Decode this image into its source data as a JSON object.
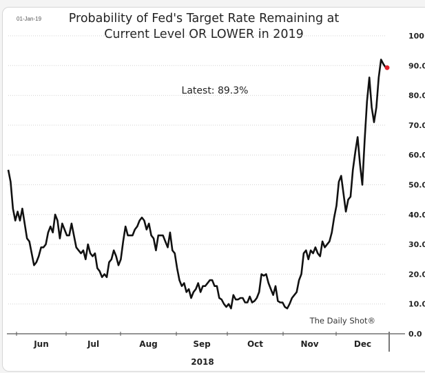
{
  "header": {
    "date": "01-Jan-19"
  },
  "annotations": {
    "latest": "Latest:  89.3%",
    "source": "The Daily Shot®"
  },
  "chart_data": {
    "type": "line",
    "title": "Probability of Fed's Target Rate Remaining at Current Level OR LOWER in 2019",
    "title_lines": [
      "Probability of Fed's Target Rate Remaining at",
      "Current Level OR LOWER in 2019"
    ],
    "xlabel": "2018",
    "ylabel": "",
    "ylim": [
      0,
      100
    ],
    "y_ticks": [
      "0.0",
      "10.0",
      "20.0",
      "30.0",
      "40.0",
      "50.0",
      "60.0",
      "70.0",
      "80.0",
      "90.0",
      "100.0"
    ],
    "x_tick_labels": [
      "Jun",
      "Jul",
      "Aug",
      "Sep",
      "Oct",
      "Nov",
      "Dec"
    ],
    "grid": true,
    "axis_side": "right",
    "latest_marker": {
      "value": 89.3,
      "color": "#e0202a"
    },
    "series": [
      {
        "name": "Probability",
        "color": "#111111",
        "x_range_days": [
          0,
          215
        ],
        "values": [
          55.0,
          51.0,
          42.0,
          38.0,
          41.0,
          38.0,
          42.0,
          37.0,
          32.0,
          31.0,
          27.0,
          23.0,
          24.0,
          26.0,
          29.0,
          29.0,
          30.0,
          34.0,
          36.0,
          34.0,
          40.0,
          38.0,
          32.0,
          37.0,
          35.0,
          33.0,
          33.0,
          37.0,
          33.0,
          29.0,
          28.0,
          27.0,
          28.0,
          25.0,
          30.0,
          27.0,
          26.0,
          27.0,
          22.0,
          21.0,
          19.0,
          20.0,
          19.0,
          24.0,
          25.0,
          28.0,
          26.0,
          23.0,
          25.0,
          31.0,
          36.0,
          33.0,
          33.0,
          33.0,
          35.0,
          36.0,
          38.0,
          39.0,
          38.0,
          35.0,
          37.0,
          33.0,
          32.0,
          28.0,
          33.0,
          33.0,
          33.0,
          31.0,
          29.0,
          34.0,
          28.0,
          27.0,
          22.0,
          18.0,
          16.0,
          17.0,
          14.0,
          15.0,
          12.0,
          14.0,
          15.0,
          17.0,
          14.0,
          16.0,
          16.0,
          17.0,
          18.0,
          18.0,
          16.0,
          16.0,
          12.0,
          11.5,
          10.0,
          9.0,
          10.0,
          8.5,
          13.0,
          11.5,
          11.5,
          12.0,
          12.0,
          10.5,
          10.5,
          12.5,
          10.5,
          11.0,
          12.0,
          14.0,
          20.0,
          19.5,
          20.0,
          17.0,
          15.0,
          13.0,
          16.0,
          11.0,
          10.5,
          10.5,
          9.0,
          8.5,
          10.0,
          12.0,
          13.0,
          14.0,
          18.0,
          20.0,
          27.0,
          28.0,
          25.0,
          28.0,
          27.0,
          29.0,
          27.0,
          26.0,
          31.0,
          29.0,
          30.0,
          31.0,
          34.0,
          39.0,
          43.0,
          51.0,
          53.0,
          47.0,
          41.0,
          45.0,
          46.0,
          55.0,
          61.0,
          66.0,
          57.0,
          50.0,
          65.0,
          78.0,
          86.0,
          76.0,
          71.0,
          76.0,
          86.0,
          92.0,
          90.5,
          89.3
        ]
      }
    ]
  }
}
